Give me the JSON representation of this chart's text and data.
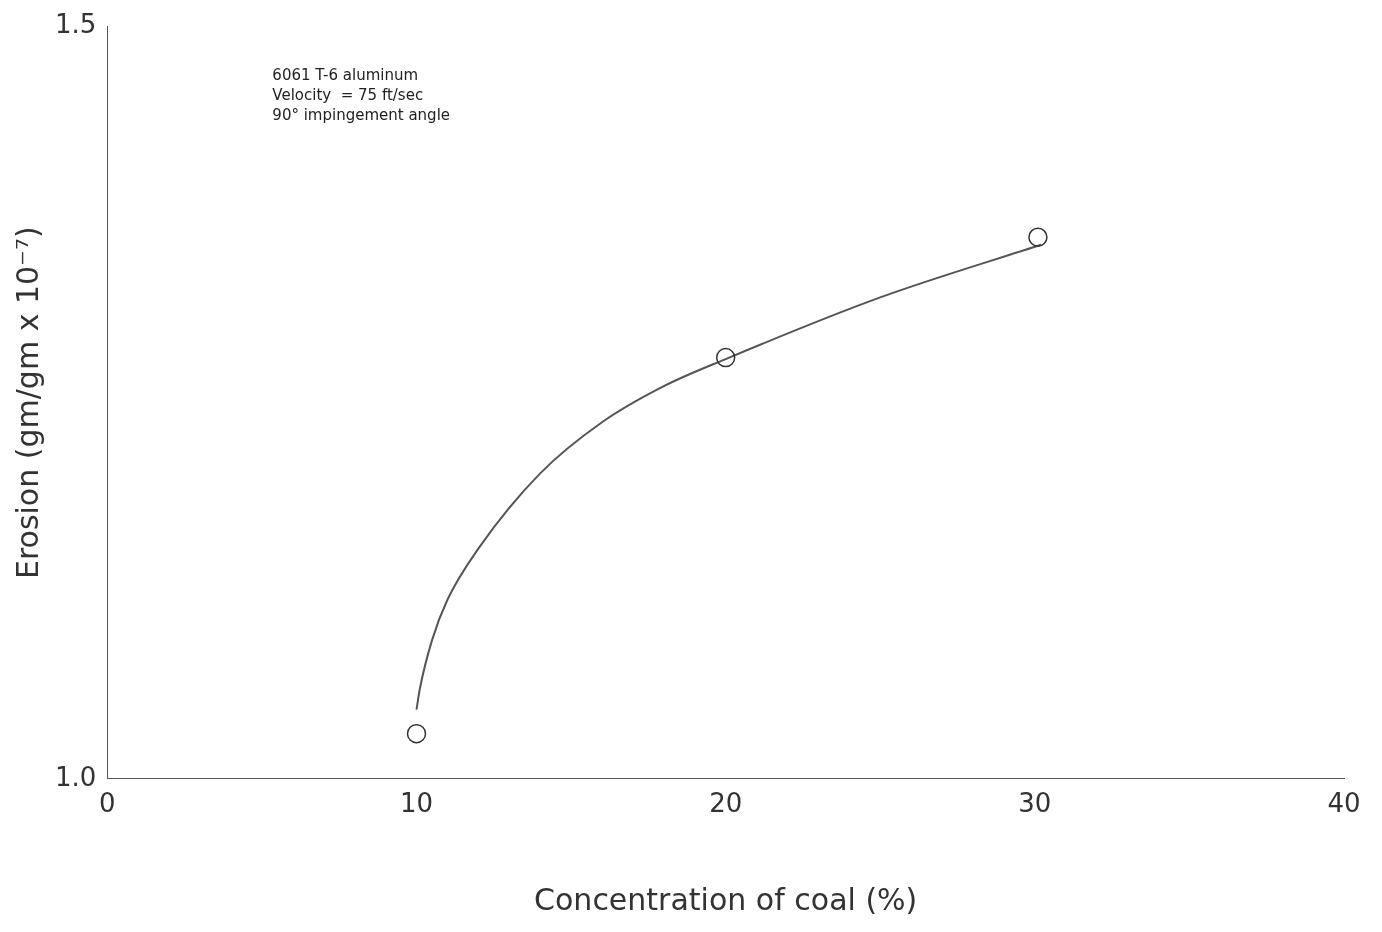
{
  "chart_data": {
    "type": "scatter",
    "xlabel": "Concentration of coal (%)",
    "ylabel": "Erosion (gm/gm x 10⁻⁷)",
    "annotations": [
      "6061 T-6 aluminum",
      "Velocity  = 75 ft/sec",
      "90° impingement angle"
    ],
    "xlim": [
      0,
      40
    ],
    "xticks": [
      0,
      10,
      20,
      30,
      40
    ],
    "ylim": [
      1.0,
      1.5
    ],
    "yticks": [
      {
        "value": 1.0,
        "label": "1.0"
      },
      {
        "value": 1.5,
        "label": "1.5"
      }
    ],
    "grid": false,
    "series": [
      {
        "type": "scatter",
        "marker": "circle",
        "color": "#333333",
        "x": [
          10,
          20,
          30.1
        ],
        "values": [
          1.03,
          1.28,
          1.36
        ]
      },
      {
        "type": "line",
        "marker": "none",
        "color": "#555555",
        "x": [
          10,
          10.1,
          10.5,
          11,
          12,
          14,
          16,
          18,
          20,
          25,
          30.2
        ],
        "values": [
          1.046,
          1.059,
          1.092,
          1.119,
          1.153,
          1.203,
          1.237,
          1.261,
          1.279,
          1.32,
          1.355
        ]
      }
    ]
  }
}
